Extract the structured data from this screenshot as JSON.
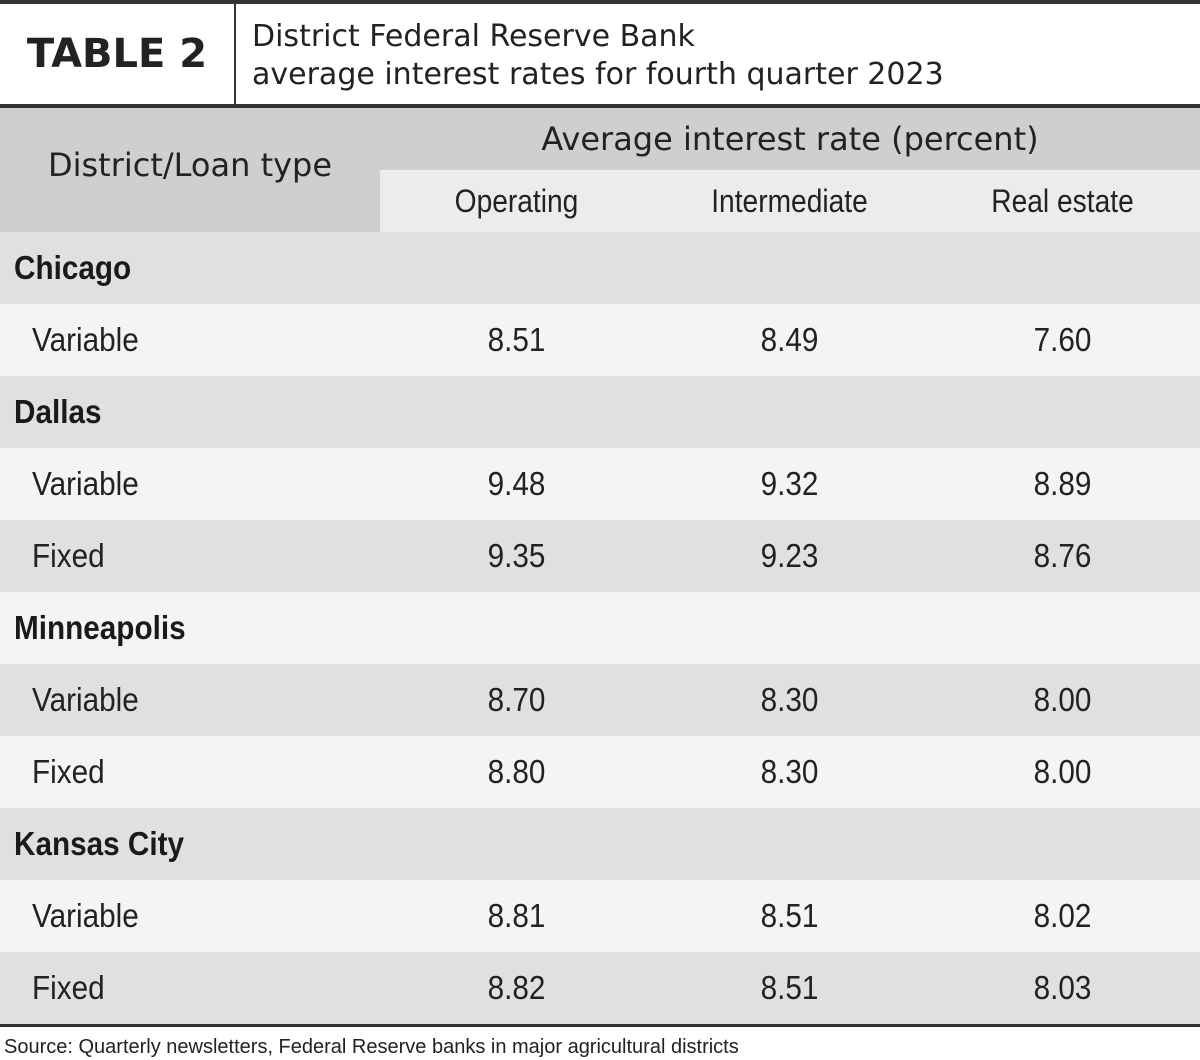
{
  "table_label": "TABLE 2",
  "title": {
    "line1": "District Federal Reserve Bank",
    "line2": "average interest rates for fourth quarter 2023"
  },
  "headers": {
    "district": "District/Loan type",
    "group": "Average interest rate (percent)",
    "columns": [
      "Operating",
      "Intermediate",
      "Real estate"
    ]
  },
  "rows": [
    {
      "kind": "district",
      "label": "Chicago"
    },
    {
      "kind": "loan",
      "label": "Variable",
      "values": [
        "8.51",
        "8.49",
        "7.60"
      ]
    },
    {
      "kind": "district",
      "label": "Dallas"
    },
    {
      "kind": "loan",
      "label": "Variable",
      "values": [
        "9.48",
        "9.32",
        "8.89"
      ]
    },
    {
      "kind": "loan",
      "label": "Fixed",
      "values": [
        "9.35",
        "9.23",
        "8.76"
      ]
    },
    {
      "kind": "district",
      "label": "Minneapolis"
    },
    {
      "kind": "loan",
      "label": "Variable",
      "values": [
        "8.70",
        "8.30",
        "8.00"
      ]
    },
    {
      "kind": "loan",
      "label": "Fixed",
      "values": [
        "8.80",
        "8.30",
        "8.00"
      ]
    },
    {
      "kind": "district",
      "label": "Kansas City"
    },
    {
      "kind": "loan",
      "label": "Variable",
      "values": [
        "8.81",
        "8.51",
        "8.02"
      ]
    },
    {
      "kind": "loan",
      "label": "Fixed",
      "values": [
        "8.82",
        "8.51",
        "8.03"
      ]
    }
  ],
  "source": "Source: Quarterly newsletters, Federal Reserve banks in major agricultural districts",
  "colors": {
    "header_bg": "#cfcfcf",
    "subheader_bg": "#ececec",
    "row_dark": "#e0e0e0",
    "row_light": "#f4f4f4",
    "rule": "#333333"
  }
}
